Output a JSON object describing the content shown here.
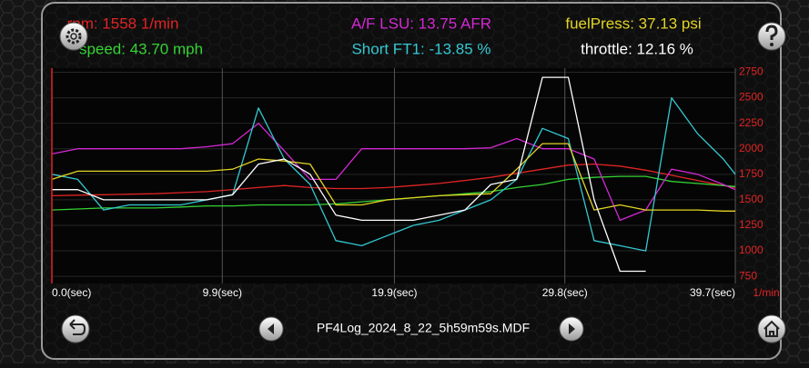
{
  "chart_data": {
    "type": "line",
    "x": [
      0,
      1.5,
      3,
      4.5,
      6,
      7.5,
      9,
      10.5,
      12,
      13.5,
      15,
      16.5,
      18,
      19.5,
      21,
      22.5,
      24,
      25.5,
      27,
      28.5,
      30,
      31.5,
      33,
      34.5,
      36,
      37.5,
      39,
      39.7
    ],
    "xlim": [
      0,
      39.7
    ],
    "xticks": [
      {
        "value": 0,
        "label": "0.0(sec)"
      },
      {
        "value": 9.9,
        "label": "9.9(sec)"
      },
      {
        "value": 19.9,
        "label": "19.9(sec)"
      },
      {
        "value": 29.8,
        "label": "29.8(sec)"
      },
      {
        "value": 39.7,
        "label": "39.7(sec)"
      }
    ],
    "ylim": [
      680,
      2790
    ],
    "yticks": [
      750,
      1000,
      1250,
      1500,
      1750,
      2000,
      2250,
      2500,
      2750
    ],
    "y_unit": "1/min",
    "grid": true,
    "series": [
      {
        "name": "rpm: 1558 1/min",
        "color": "#e02424",
        "values": [
          1540,
          1545,
          1550,
          1555,
          1560,
          1570,
          1580,
          1600,
          1620,
          1640,
          1620,
          1610,
          1610,
          1620,
          1640,
          1660,
          1690,
          1720,
          1760,
          1800,
          1840,
          1850,
          1830,
          1790,
          1740,
          1690,
          1640,
          1620
        ]
      },
      {
        "name": "speed: 43.70 mph",
        "color": "#34d234",
        "values": [
          1400,
          1410,
          1420,
          1420,
          1420,
          1430,
          1440,
          1440,
          1450,
          1450,
          1450,
          1460,
          1480,
          1500,
          1520,
          1540,
          1560,
          1580,
          1620,
          1650,
          1700,
          1720,
          1730,
          1730,
          1680,
          1660,
          1640,
          1630
        ]
      },
      {
        "name": "A/F LSU: 13.75 AFR",
        "color": "#d428d4",
        "values": [
          1950,
          2000,
          2000,
          2000,
          2000,
          2000,
          2020,
          2050,
          2250,
          1980,
          1700,
          1700,
          2000,
          2000,
          2000,
          2000,
          2000,
          2010,
          2100,
          2000,
          2000,
          1900,
          1300,
          1400,
          1800,
          1750,
          1650,
          1600
        ]
      },
      {
        "name": "Short FT1: -13.85 %",
        "color": "#34c8d2",
        "values": [
          1750,
          1700,
          1400,
          1450,
          1450,
          1450,
          1500,
          1550,
          2400,
          1900,
          1650,
          1100,
          1050,
          1150,
          1250,
          1300,
          1400,
          1500,
          1700,
          2200,
          2100,
          1100,
          1050,
          1000,
          2500,
          2150,
          1900,
          1750
        ]
      },
      {
        "name": "fuelPress: 37.13 psi",
        "color": "#e2d424",
        "values": [
          1700,
          1780,
          1780,
          1780,
          1780,
          1780,
          1780,
          1800,
          1900,
          1880,
          1850,
          1450,
          1450,
          1500,
          1520,
          1540,
          1550,
          1560,
          1800,
          2050,
          2050,
          1400,
          1450,
          1400,
          1400,
          1400,
          1390,
          1390
        ]
      },
      {
        "name": "throttle: 12.16 %",
        "color": "#ffffff",
        "values": [
          1600,
          1600,
          1500,
          1500,
          1500,
          1500,
          1500,
          1550,
          1850,
          1900,
          1750,
          1350,
          1300,
          1300,
          1300,
          1350,
          1400,
          1650,
          1700,
          2700,
          2700,
          1500,
          800,
          800,
          null,
          null,
          null,
          null
        ]
      }
    ]
  },
  "footer": {
    "file": "PF4Log_2024_8_22_5h59m59s.MDF"
  }
}
